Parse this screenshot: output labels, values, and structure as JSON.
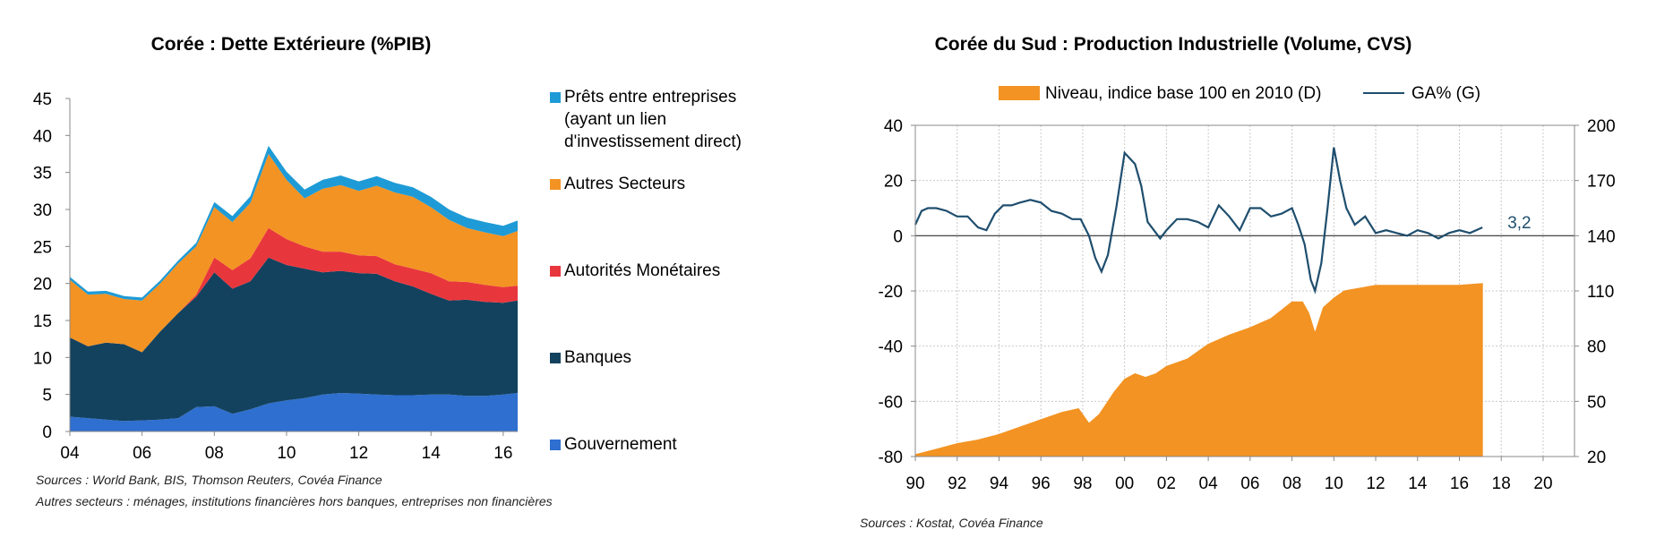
{
  "chart_data": [
    {
      "type": "area",
      "stacked": true,
      "title": "Corée : Dette Extérieure (%PIB)",
      "ylim": [
        0,
        45
      ],
      "yticks": [
        "0",
        "5",
        "10",
        "15",
        "20",
        "25",
        "30",
        "35",
        "40",
        "45"
      ],
      "x_ticks": [
        "04",
        "06",
        "08",
        "10",
        "12",
        "14",
        "16"
      ],
      "x": [
        2004.0,
        2004.5,
        2005.0,
        2005.5,
        2006.0,
        2006.5,
        2007.0,
        2007.5,
        2008.0,
        2008.5,
        2009.0,
        2009.5,
        2010.0,
        2010.5,
        2011.0,
        2011.5,
        2012.0,
        2012.5,
        2013.0,
        2013.5,
        2014.0,
        2014.5,
        2015.0,
        2015.5,
        2016.0,
        2016.4
      ],
      "series": [
        {
          "name": "Gouvernement",
          "color": "#2e6fcf",
          "values": [
            2.0,
            1.8,
            1.6,
            1.4,
            1.5,
            1.6,
            1.8,
            3.3,
            3.4,
            2.4,
            3.0,
            3.8,
            4.2,
            4.5,
            5.0,
            5.2,
            5.1,
            5.0,
            4.9,
            4.9,
            5.0,
            5.0,
            4.8,
            4.8,
            5.0,
            5.2
          ]
        },
        {
          "name": "Banques",
          "color": "#13425f",
          "values": [
            10.7,
            9.7,
            10.4,
            10.4,
            9.2,
            11.9,
            14.2,
            14.9,
            18.1,
            16.9,
            17.3,
            19.7,
            18.3,
            17.5,
            16.5,
            16.5,
            16.3,
            16.3,
            15.4,
            14.7,
            13.6,
            12.7,
            13.0,
            12.7,
            12.4,
            12.5
          ]
        },
        {
          "name": "Autorités Monétaires",
          "color": "#e8363d",
          "values": [
            0.0,
            0.0,
            0.0,
            0.0,
            0.0,
            0.0,
            0.0,
            0.3,
            2.0,
            2.5,
            3.1,
            4.0,
            3.5,
            3.0,
            2.8,
            2.6,
            2.4,
            2.4,
            2.3,
            2.4,
            2.8,
            2.6,
            2.4,
            2.3,
            2.1,
            2.0
          ]
        },
        {
          "name": "Autres Secteurs",
          "color": "#f39323",
          "values": [
            7.8,
            7.0,
            6.6,
            6.1,
            7.0,
            6.5,
            6.7,
            6.5,
            6.8,
            6.5,
            7.5,
            10.0,
            8.0,
            6.5,
            8.5,
            9.0,
            8.7,
            9.5,
            9.7,
            9.7,
            8.9,
            8.3,
            7.3,
            7.1,
            6.9,
            7.4
          ]
        },
        {
          "name": "Prêts entre entreprises\n(ayant un lien\nd'investissement direct)",
          "color": "#1e9bd6",
          "values": [
            0.4,
            0.4,
            0.4,
            0.4,
            0.4,
            0.4,
            0.4,
            0.5,
            0.7,
            0.8,
            0.9,
            1.1,
            1.1,
            1.2,
            1.2,
            1.3,
            1.3,
            1.3,
            1.3,
            1.3,
            1.4,
            1.4,
            1.4,
            1.4,
            1.4,
            1.4
          ]
        }
      ],
      "legend_order": [
        "Prêts entre entreprises\n(ayant un lien\nd'investissement direct)",
        "Autres Secteurs",
        "Autorités Monétaires",
        "Banques",
        "Gouvernement"
      ],
      "source": "Sources : World Bank, BIS, Thomson Reuters, Covéa Finance",
      "note": "Autres secteurs : ménages, institutions financières hors banques, entreprises non financières"
    },
    {
      "type": "line",
      "title": "Corée du Sud : Production Industrielle (Volume, CVS)",
      "ylim_left": [
        -80,
        40
      ],
      "ylim_right": [
        20,
        200
      ],
      "yticks_left": [
        "-80",
        "-60",
        "-40",
        "-20",
        "0",
        "20",
        "40"
      ],
      "yticks_right": [
        "20",
        "50",
        "80",
        "110",
        "140",
        "170",
        "200"
      ],
      "xlim": [
        1990,
        2021.5
      ],
      "x_ticks": [
        "90",
        "92",
        "94",
        "96",
        "98",
        "00",
        "02",
        "04",
        "06",
        "08",
        "10",
        "12",
        "14",
        "16",
        "18",
        "20"
      ],
      "series": [
        {
          "name": "Niveau, indice base 100 en 2010 (D)",
          "axis": "right",
          "type": "area",
          "color": "#f39323",
          "x": [
            1990.0,
            1991.0,
            1992.0,
            1993.0,
            1994.0,
            1995.0,
            1996.0,
            1997.0,
            1997.8,
            1998.3,
            1998.8,
            1999.5,
            2000.0,
            2000.5,
            2001.0,
            2001.5,
            2002.0,
            2003.0,
            2004.0,
            2005.0,
            2006.0,
            2007.0,
            2008.0,
            2008.5,
            2008.8,
            2009.1,
            2009.5,
            2010.0,
            2010.5,
            2011.0,
            2012.0,
            2013.0,
            2014.0,
            2015.0,
            2016.0,
            2017.1
          ],
          "values": [
            21,
            24,
            27,
            29,
            32,
            36,
            40,
            44,
            46,
            38,
            43,
            55,
            62,
            65,
            63,
            65,
            69,
            73,
            81,
            86,
            90,
            95,
            104,
            104,
            98,
            87,
            101,
            106,
            110,
            111,
            113,
            113,
            113,
            113,
            113,
            114
          ]
        },
        {
          "name": "GA% (G)",
          "axis": "left",
          "type": "line",
          "color": "#1f4e6e",
          "x": [
            1990.0,
            1990.3,
            1990.6,
            1991.0,
            1991.5,
            1992.0,
            1992.5,
            1993.0,
            1993.4,
            1993.8,
            1994.2,
            1994.6,
            1995.0,
            1995.5,
            1996.0,
            1996.5,
            1997.0,
            1997.5,
            1997.9,
            1998.3,
            1998.6,
            1998.9,
            1999.2,
            1999.6,
            2000.0,
            2000.5,
            2000.8,
            2001.1,
            2001.4,
            2001.7,
            2002.0,
            2002.5,
            2003.0,
            2003.5,
            2004.0,
            2004.5,
            2005.0,
            2005.5,
            2006.0,
            2006.5,
            2007.0,
            2007.5,
            2008.0,
            2008.3,
            2008.6,
            2008.9,
            2009.1,
            2009.4,
            2009.7,
            2010.0,
            2010.3,
            2010.6,
            2011.0,
            2011.5,
            2012.0,
            2012.5,
            2013.0,
            2013.5,
            2014.0,
            2014.5,
            2015.0,
            2015.5,
            2016.0,
            2016.5,
            2017.1
          ],
          "values": [
            4,
            9,
            10,
            10,
            9,
            7,
            7,
            3,
            2,
            8,
            11,
            11,
            12,
            13,
            12,
            9,
            8,
            6,
            6,
            0,
            -8,
            -13,
            -7,
            10,
            30,
            26,
            18,
            5,
            2,
            -1,
            2,
            6,
            6,
            5,
            3,
            11,
            7,
            2,
            10,
            10,
            7,
            8,
            10,
            4,
            -3,
            -16,
            -20,
            -10,
            10,
            32,
            20,
            10,
            4,
            7,
            1,
            2,
            1,
            0,
            2,
            1,
            -1,
            1,
            2,
            1,
            3
          ]
        }
      ],
      "last_value_label": "3,2",
      "source": "Sources : Kostat, Covéa Finance"
    }
  ]
}
